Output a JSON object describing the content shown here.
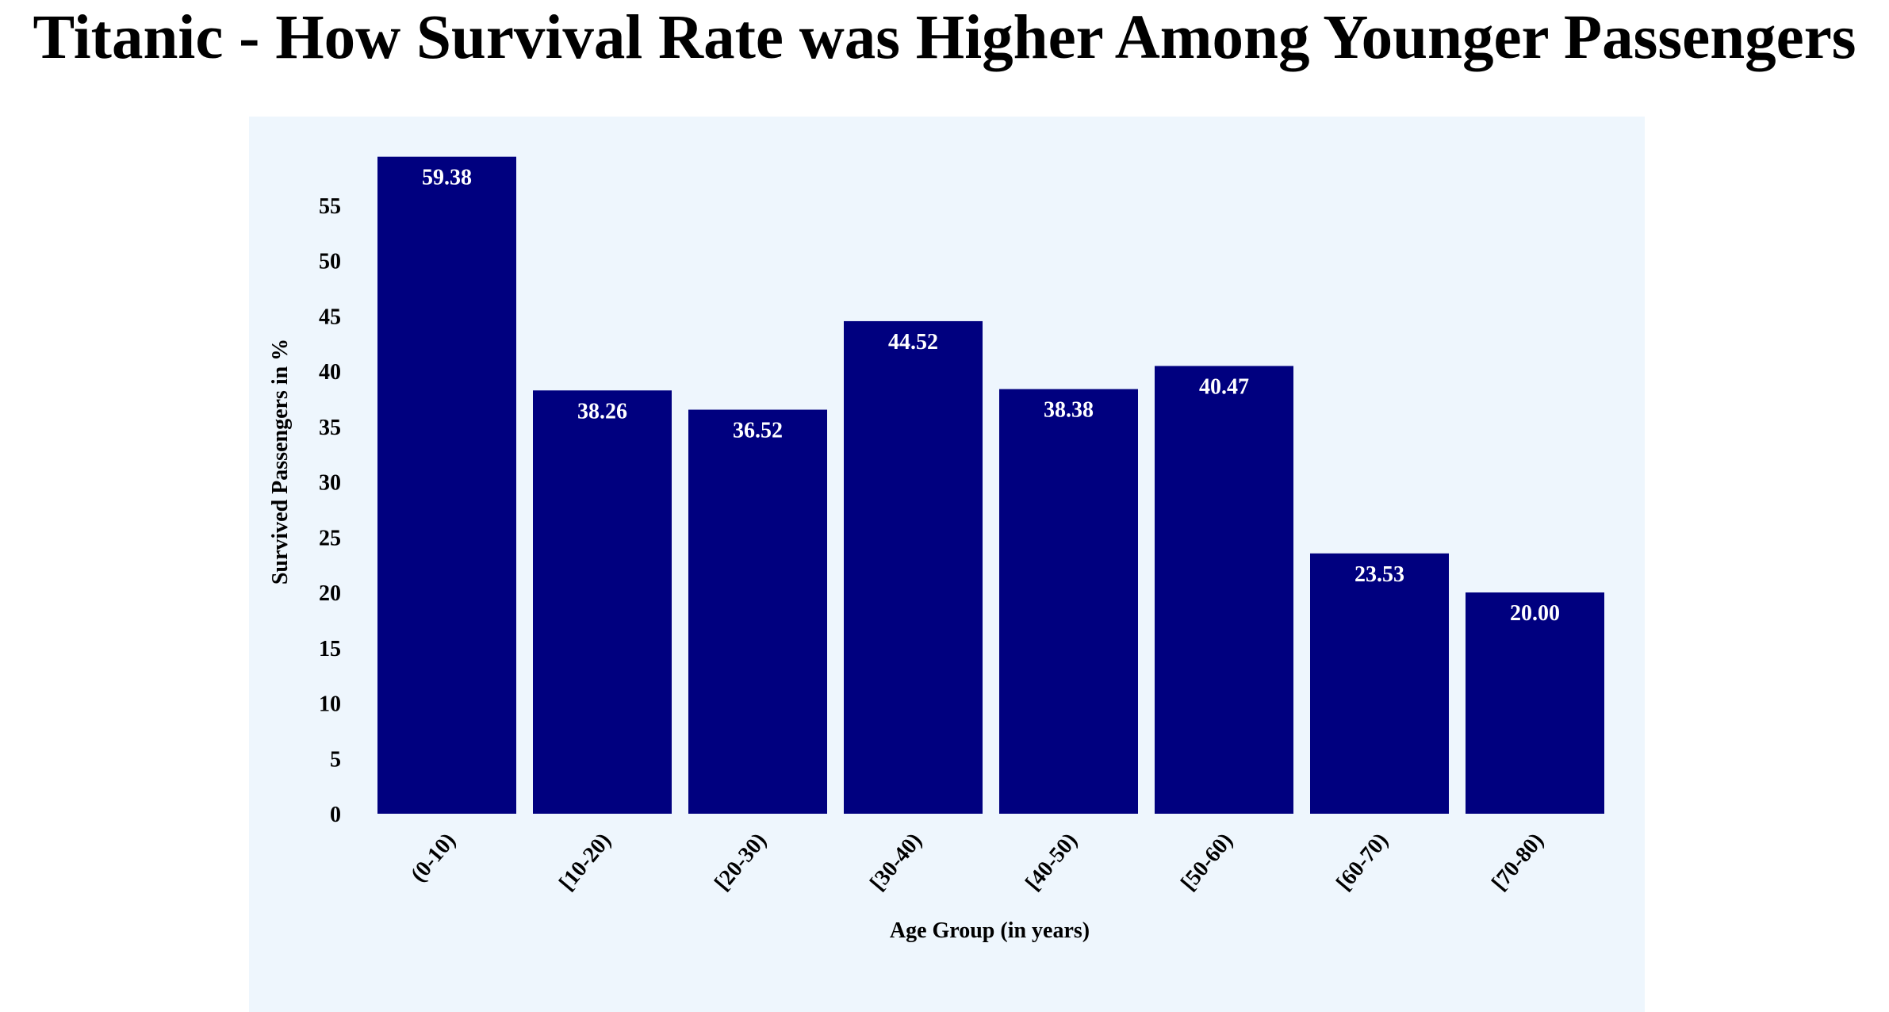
{
  "chart_data": {
    "type": "bar",
    "title": "Titanic - How Survival Rate was Higher Among Younger Passengers",
    "xlabel": "Age Group (in years)",
    "ylabel": "Survived Passengers in %",
    "categories": [
      "(0-10)",
      "[10-20)",
      "[20-30)",
      "[30-40)",
      "[40-50)",
      "[50-60)",
      "[60-70)",
      "[70-80)"
    ],
    "values": [
      59.38,
      38.26,
      36.52,
      44.52,
      38.38,
      40.47,
      23.53,
      20.0
    ],
    "data_labels": [
      "59.38",
      "38.26",
      "36.52",
      "44.52",
      "38.38",
      "40.47",
      "23.53",
      "20.00"
    ],
    "yticks": [
      0,
      5,
      10,
      15,
      20,
      25,
      30,
      35,
      40,
      45,
      50,
      55
    ],
    "ylim": [
      0,
      60
    ],
    "grid": false,
    "legend": "none",
    "colors": {
      "bar": "#00007f",
      "plot_background": "#eef6fd",
      "bar_label": "#ffffff",
      "text": "#000000"
    }
  }
}
